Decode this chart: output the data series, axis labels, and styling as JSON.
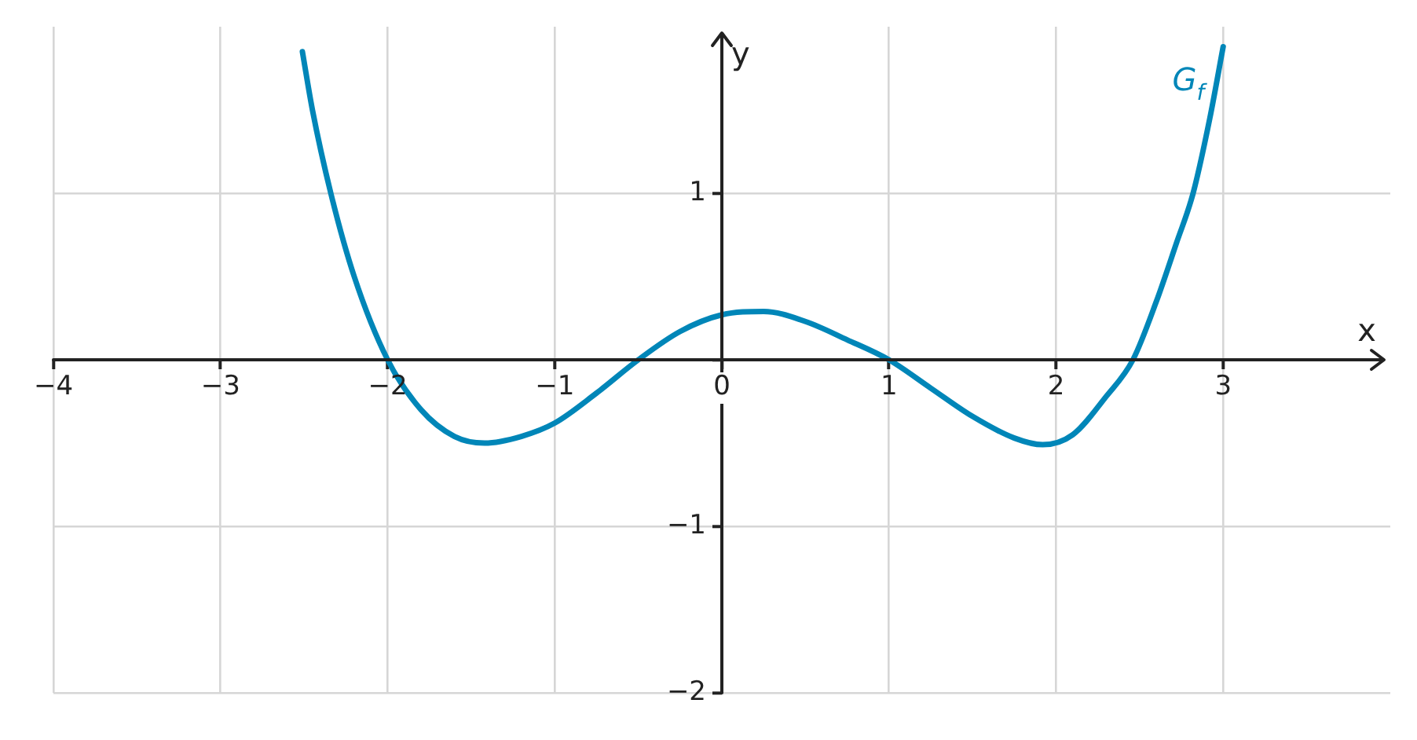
{
  "chart_data": {
    "type": "line",
    "xlabel": "x",
    "ylabel": "y",
    "xlim": [
      -4,
      4
    ],
    "ylim": [
      -2,
      2
    ],
    "xticks": [
      {
        "value": -4,
        "label": "−4"
      },
      {
        "value": -3,
        "label": "−3"
      },
      {
        "value": -2,
        "label": "−2"
      },
      {
        "value": -1,
        "label": "−1"
      },
      0,
      1,
      2,
      3
    ],
    "yticks": [
      {
        "value": -2,
        "label": "−2"
      },
      {
        "value": -1,
        "label": "−1"
      },
      {
        "value": 0,
        "label": null
      },
      1
    ],
    "grid": true,
    "legend": false,
    "marker": "none",
    "line_style": "solid",
    "series": [
      {
        "name": "G$_{f}$",
        "color": "#0086b8",
        "x": [
          -2.51,
          -2.45,
          -2.34,
          -2.2,
          -2.0,
          -1.8,
          -1.6,
          -1.42,
          -1.2,
          -1.0,
          -0.75,
          -0.5,
          -0.25,
          0,
          0.25,
          0.5,
          0.75,
          1,
          1.25,
          1.5,
          1.75,
          1.92,
          2.1,
          2.3,
          2.46,
          2.6,
          2.72,
          2.82,
          2.92,
          3.0
        ],
        "values": [
          1.85,
          1.5,
          1.0,
          0.5,
          0,
          -0.3,
          -0.46,
          -0.5,
          -0.46,
          -0.38,
          -0.2,
          0,
          0.17,
          0.27,
          0.29,
          0.23,
          0.12,
          0,
          -0.17,
          -0.34,
          -0.47,
          -0.51,
          -0.45,
          -0.22,
          0,
          0.35,
          0.7,
          1.0,
          1.45,
          1.88
        ]
      }
    ]
  }
}
